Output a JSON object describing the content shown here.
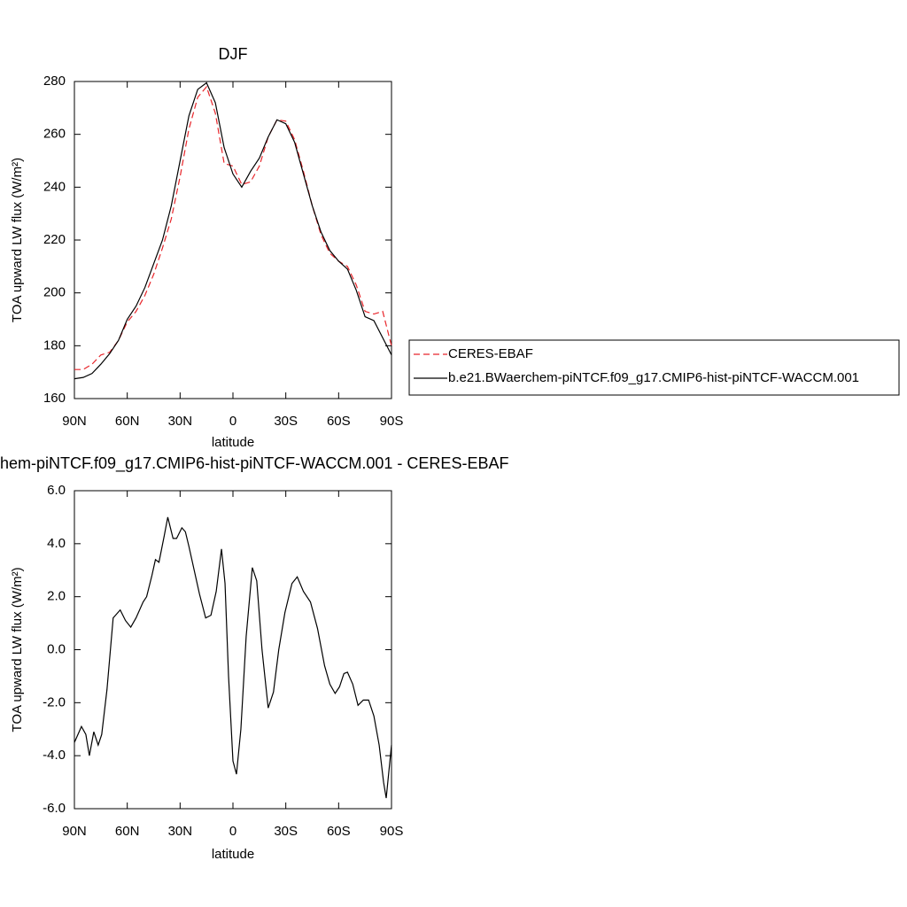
{
  "chart_data": [
    {
      "type": "line",
      "title": "DJF",
      "x_label": "latitude",
      "y_label": "TOA upward LW flux (W/m²)",
      "xlim": [
        90,
        -90
      ],
      "ylim": [
        160,
        280
      ],
      "xticks": [
        {
          "value": 90,
          "label": "90N"
        },
        {
          "value": 60,
          "label": "60N"
        },
        {
          "value": 30,
          "label": "30N"
        },
        0,
        {
          "value": -30,
          "label": "30S"
        },
        {
          "value": -60,
          "label": "60S"
        },
        {
          "value": -90,
          "label": "90S"
        }
      ],
      "yticks": [
        160,
        180,
        200,
        220,
        240,
        260,
        280
      ],
      "legend": "right",
      "x": [
        90,
        85,
        80,
        75,
        70,
        65,
        60,
        55,
        50,
        45,
        40,
        35,
        30,
        25,
        20,
        15,
        10,
        5,
        0,
        -5,
        -10,
        -15,
        -20,
        -25,
        -30,
        -35,
        -40,
        -45,
        -50,
        -55,
        -60,
        -65,
        -70,
        -75,
        -80,
        -85,
        -90
      ],
      "series": [
        {
          "name": "CERES-EBAF",
          "color": "#e8252a",
          "linestyle": "dashed",
          "values": [
            171,
            171,
            173,
            176.5,
            177.5,
            182,
            189,
            193,
            199,
            207,
            217,
            228,
            244,
            262,
            274,
            278,
            268,
            249,
            248,
            241,
            242,
            248,
            259,
            265.5,
            265,
            258,
            246,
            233,
            222,
            215,
            212,
            210,
            203,
            193,
            192,
            193,
            180
          ]
        },
        {
          "name": "b.e21.BWaerchem-piNTCF.f09_g17.CMIP6-hist-piNTCF-WACCM.001",
          "color": "#000000",
          "linestyle": "solid",
          "values": [
            167.5,
            168,
            169.5,
            173,
            177,
            182,
            190,
            195,
            202,
            211,
            220,
            233,
            250,
            267,
            277,
            279.5,
            272,
            255,
            245,
            240,
            246,
            251,
            259,
            265.5,
            264,
            257,
            245,
            233,
            223,
            216,
            212,
            209,
            201,
            191,
            189.5,
            183,
            176.5
          ]
        }
      ]
    },
    {
      "type": "line",
      "title": "hem-piNTCF.f09_g17.CMIP6-hist-piNTCF-WACCM.001 - CERES-EBAF",
      "x_label": "latitude",
      "y_label": "TOA upward LW flux (W/m²)",
      "xlim": [
        90,
        -90
      ],
      "ylim": [
        -6,
        6
      ],
      "xticks": [
        {
          "value": 90,
          "label": "90N"
        },
        {
          "value": 60,
          "label": "60N"
        },
        {
          "value": 30,
          "label": "30N"
        },
        0,
        {
          "value": -30,
          "label": "30S"
        },
        {
          "value": -60,
          "label": "60S"
        },
        {
          "value": -90,
          "label": "90S"
        }
      ],
      "yticks": [
        {
          "value": -6,
          "label": "-6.0"
        },
        {
          "value": -4,
          "label": "-4.0"
        },
        {
          "value": -2,
          "label": "-2.0"
        },
        {
          "value": 0,
          "label": "0.0"
        },
        {
          "value": 2,
          "label": "2.0"
        },
        {
          "value": 4,
          "label": "4.0"
        },
        {
          "value": 6,
          "label": "6.0"
        }
      ],
      "x": [
        90,
        86,
        83.5,
        81.5,
        79,
        76.5,
        74.5,
        71.5,
        68,
        64,
        61,
        58,
        55,
        51,
        49,
        46,
        44,
        42,
        39,
        37,
        34,
        32,
        29,
        27,
        25,
        22,
        19,
        15.5,
        12.5,
        9.5,
        6.5,
        4.5,
        2.5,
        0,
        -2,
        -4.5,
        -7.5,
        -11,
        -13.5,
        -16.5,
        -20,
        -23,
        -26,
        -29.5,
        -33.5,
        -36.5,
        -40,
        -44,
        -48,
        -52,
        -55,
        -58,
        -60.5,
        -63,
        -65,
        -68,
        -71,
        -74,
        -77,
        -80,
        -83,
        -85.5,
        -87,
        -90
      ],
      "series": [
        {
          "color": "#000000",
          "linestyle": "solid",
          "values": [
            -3.5,
            -2.9,
            -3.2,
            -4.0,
            -3.1,
            -3.6,
            -3.2,
            -1.5,
            1.2,
            1.5,
            1.1,
            0.85,
            1.2,
            1.8,
            2.0,
            2.8,
            3.4,
            3.3,
            4.3,
            5.0,
            4.2,
            4.2,
            4.6,
            4.45,
            3.9,
            3.0,
            2.1,
            1.2,
            1.3,
            2.2,
            3.8,
            2.5,
            -1.0,
            -4.2,
            -4.7,
            -3.0,
            0.5,
            3.1,
            2.6,
            0.0,
            -2.2,
            -1.6,
            0.0,
            1.4,
            2.5,
            2.75,
            2.2,
            1.8,
            0.8,
            -0.6,
            -1.3,
            -1.65,
            -1.4,
            -0.9,
            -0.85,
            -1.3,
            -2.1,
            -1.9,
            -1.9,
            -2.5,
            -3.6,
            -5.0,
            -5.6,
            -3.6
          ]
        }
      ]
    }
  ]
}
